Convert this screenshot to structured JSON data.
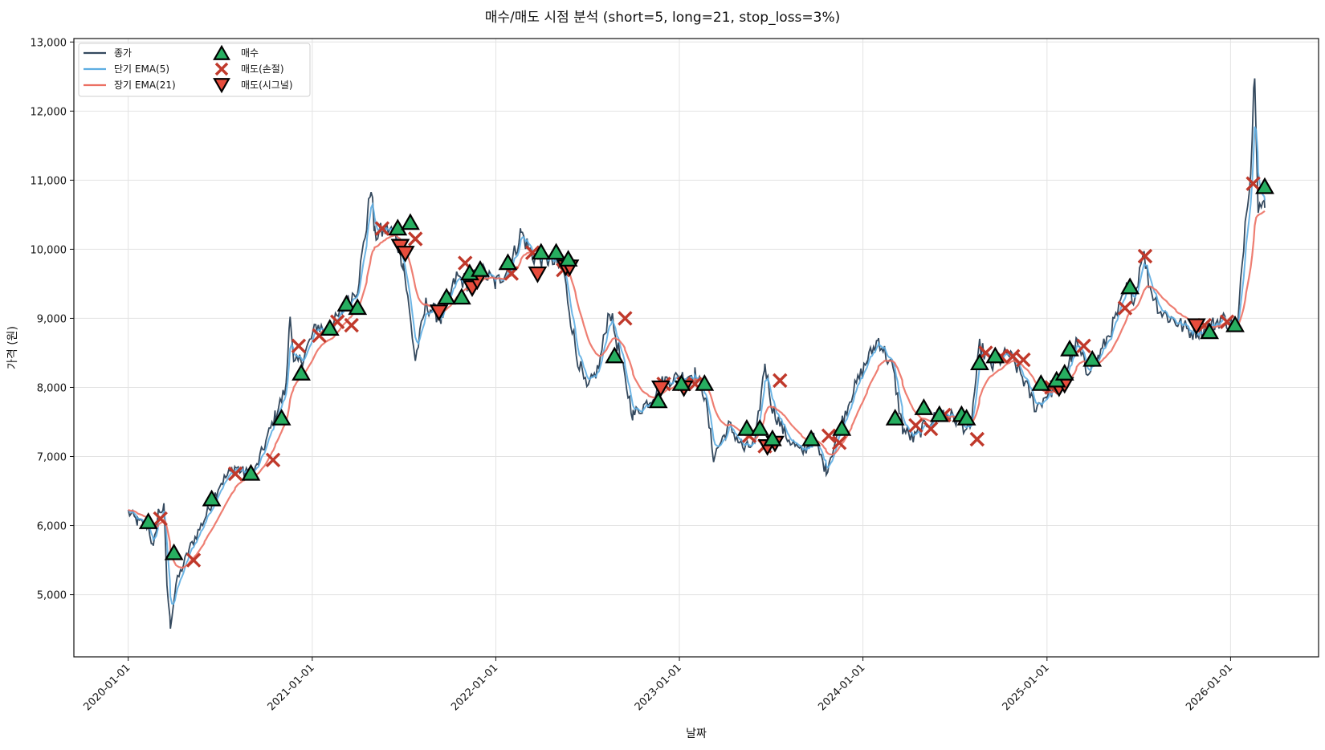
{
  "chart_data": {
    "type": "line",
    "title": "매수/매도 시점 분석 (short=5, long=21, stop_loss=3%)",
    "xlabel": "날짜",
    "ylabel": "가격 (원)",
    "ylim": [
      4100,
      13050
    ],
    "xlim": [
      "2019-09-15",
      "2026-06-25"
    ],
    "y_ticks": [
      5000,
      6000,
      7000,
      8000,
      9000,
      10000,
      11000,
      12000,
      13000
    ],
    "y_tick_labels": [
      "5,000",
      "6,000",
      "7,000",
      "8,000",
      "9,000",
      "10,000",
      "11,000",
      "12,000",
      "13,000"
    ],
    "x_ticks": [
      "2020-01-01",
      "2021-01-01",
      "2022-01-01",
      "2023-01-01",
      "2024-01-01",
      "2025-01-01",
      "2026-01-01"
    ],
    "grid": true,
    "legend": {
      "position": "top-left",
      "entries": [
        {
          "label": "종가",
          "symbol": "line",
          "color": "#34495e"
        },
        {
          "label": "단기 EMA(5)",
          "symbol": "line",
          "color": "#5dade2"
        },
        {
          "label": "장기 EMA(21)",
          "symbol": "line",
          "color": "#ec7063"
        },
        {
          "label": "매수",
          "symbol": "triangle-up",
          "color": "#27ae60"
        },
        {
          "label": "매도(손절)",
          "symbol": "x",
          "color": "#c0392b"
        },
        {
          "label": "매도(시그널)",
          "symbol": "triangle-down",
          "color": "#e74c3c"
        }
      ]
    },
    "colors": {
      "close": "#34495e",
      "ema_short": "#5dade2",
      "ema_long": "#ec7063",
      "buy": "#27ae60",
      "sell_stop": "#c0392b",
      "sell_signal": "#e74c3c"
    },
    "series_keypoints": [
      [
        "2020-01-01",
        6200
      ],
      [
        "2020-01-20",
        6050
      ],
      [
        "2020-02-10",
        6000
      ],
      [
        "2020-02-20",
        5650
      ],
      [
        "2020-03-01",
        6200
      ],
      [
        "2020-03-12",
        6250
      ],
      [
        "2020-03-18",
        5150
      ],
      [
        "2020-03-25",
        4550
      ],
      [
        "2020-04-05",
        5150
      ],
      [
        "2020-05-01",
        5650
      ],
      [
        "2020-06-01",
        6100
      ],
      [
        "2020-07-01",
        6600
      ],
      [
        "2020-08-01",
        6850
      ],
      [
        "2020-08-20",
        6750
      ],
      [
        "2020-09-10",
        6800
      ],
      [
        "2020-09-25",
        7100
      ],
      [
        "2020-10-20",
        7600
      ],
      [
        "2020-11-10",
        8000
      ],
      [
        "2020-11-18",
        9150
      ],
      [
        "2020-11-25",
        8300
      ],
      [
        "2020-12-15",
        8450
      ],
      [
        "2021-01-10",
        8900
      ],
      [
        "2021-02-01",
        8800
      ],
      [
        "2021-03-01",
        9100
      ],
      [
        "2021-04-01",
        9450
      ],
      [
        "2021-04-20",
        10400
      ],
      [
        "2021-04-28",
        10950
      ],
      [
        "2021-05-05",
        10200
      ],
      [
        "2021-06-01",
        10300
      ],
      [
        "2021-06-15",
        10200
      ],
      [
        "2021-07-01",
        9800
      ],
      [
        "2021-07-25",
        8400
      ],
      [
        "2021-08-15",
        9200
      ],
      [
        "2021-09-15",
        9000
      ],
      [
        "2021-10-15",
        9600
      ],
      [
        "2021-11-10",
        9500
      ],
      [
        "2021-12-01",
        9700
      ],
      [
        "2022-01-01",
        9500
      ],
      [
        "2022-02-01",
        9800
      ],
      [
        "2022-02-20",
        10250
      ],
      [
        "2022-03-15",
        9900
      ],
      [
        "2022-04-15",
        9850
      ],
      [
        "2022-05-15",
        9700
      ],
      [
        "2022-06-10",
        8500
      ],
      [
        "2022-07-01",
        7950
      ],
      [
        "2022-07-25",
        8300
      ],
      [
        "2022-08-15",
        9150
      ],
      [
        "2022-09-15",
        8100
      ],
      [
        "2022-10-01",
        7600
      ],
      [
        "2022-11-01",
        7800
      ],
      [
        "2022-12-01",
        8100
      ],
      [
        "2023-01-01",
        8150
      ],
      [
        "2023-02-01",
        8200
      ],
      [
        "2023-02-20",
        7900
      ],
      [
        "2023-03-10",
        7000
      ],
      [
        "2023-04-10",
        7450
      ],
      [
        "2023-05-10",
        7100
      ],
      [
        "2023-06-01",
        7200
      ],
      [
        "2023-06-20",
        8350
      ],
      [
        "2023-07-05",
        7700
      ],
      [
        "2023-08-01",
        7300
      ],
      [
        "2023-09-01",
        7050
      ],
      [
        "2023-09-25",
        7250
      ],
      [
        "2023-10-20",
        6800
      ],
      [
        "2023-11-15",
        7400
      ],
      [
        "2023-12-10",
        7900
      ],
      [
        "2024-01-10",
        8400
      ],
      [
        "2024-02-01",
        8700
      ],
      [
        "2024-03-01",
        8250
      ],
      [
        "2024-03-20",
        7400
      ],
      [
        "2024-04-10",
        7250
      ],
      [
        "2024-05-10",
        7500
      ],
      [
        "2024-06-10",
        7650
      ],
      [
        "2024-07-10",
        7500
      ],
      [
        "2024-08-01",
        7350
      ],
      [
        "2024-08-20",
        8600
      ],
      [
        "2024-09-15",
        8300
      ],
      [
        "2024-10-15",
        8500
      ],
      [
        "2024-11-10",
        8200
      ],
      [
        "2024-12-10",
        7700
      ],
      [
        "2025-01-01",
        7900
      ],
      [
        "2025-02-01",
        8100
      ],
      [
        "2025-03-01",
        8650
      ],
      [
        "2025-03-20",
        8250
      ],
      [
        "2025-04-15",
        8450
      ],
      [
        "2025-05-15",
        8950
      ],
      [
        "2025-06-10",
        9450
      ],
      [
        "2025-06-25",
        9300
      ],
      [
        "2025-07-10",
        10000
      ],
      [
        "2025-07-25",
        9450
      ],
      [
        "2025-08-15",
        9100
      ],
      [
        "2025-09-15",
        8950
      ],
      [
        "2025-10-15",
        8800
      ],
      [
        "2025-11-15",
        8850
      ],
      [
        "2025-12-15",
        9000
      ],
      [
        "2026-01-15",
        8850
      ],
      [
        "2026-02-01",
        10600
      ],
      [
        "2026-02-10",
        11100
      ],
      [
        "2026-02-18",
        12650
      ],
      [
        "2026-02-25",
        10650
      ],
      [
        "2026-03-10",
        10600
      ]
    ],
    "markers": {
      "buy": [
        [
          "2020-02-10",
          6050
        ],
        [
          "2020-04-01",
          5600
        ],
        [
          "2020-06-15",
          6380
        ],
        [
          "2020-09-01",
          6750
        ],
        [
          "2020-11-01",
          7550
        ],
        [
          "2020-12-10",
          8200
        ],
        [
          "2021-02-05",
          8850
        ],
        [
          "2021-03-10",
          9200
        ],
        [
          "2021-04-01",
          9150
        ],
        [
          "2021-06-20",
          10300
        ],
        [
          "2021-07-15",
          10380
        ],
        [
          "2021-09-25",
          9300
        ],
        [
          "2021-10-25",
          9300
        ],
        [
          "2021-11-10",
          9650
        ],
        [
          "2021-12-01",
          9700
        ],
        [
          "2022-01-25",
          9800
        ],
        [
          "2022-04-01",
          9950
        ],
        [
          "2022-05-01",
          9950
        ],
        [
          "2022-05-25",
          9850
        ],
        [
          "2022-08-25",
          8450
        ],
        [
          "2022-11-20",
          7800
        ],
        [
          "2023-01-05",
          8050
        ],
        [
          "2023-02-20",
          8050
        ],
        [
          "2023-05-15",
          7400
        ],
        [
          "2023-06-10",
          7400
        ],
        [
          "2023-07-05",
          7250
        ],
        [
          "2023-09-20",
          7250
        ],
        [
          "2023-11-20",
          7400
        ],
        [
          "2024-03-05",
          7550
        ],
        [
          "2024-05-01",
          7700
        ],
        [
          "2024-06-01",
          7600
        ],
        [
          "2024-07-15",
          7600
        ],
        [
          "2024-07-25",
          7550
        ],
        [
          "2024-08-20",
          8350
        ],
        [
          "2024-09-20",
          8450
        ],
        [
          "2024-12-20",
          8050
        ],
        [
          "2025-01-20",
          8100
        ],
        [
          "2025-02-05",
          8200
        ],
        [
          "2025-02-15",
          8550
        ],
        [
          "2025-04-01",
          8400
        ],
        [
          "2025-06-15",
          9450
        ],
        [
          "2025-11-20",
          8800
        ],
        [
          "2026-01-10",
          8900
        ],
        [
          "2026-03-10",
          10900
        ]
      ],
      "sell_stop": [
        [
          "2020-03-05",
          6100
        ],
        [
          "2020-05-10",
          5500
        ],
        [
          "2020-08-01",
          6750
        ],
        [
          "2020-10-15",
          6950
        ],
        [
          "2020-12-05",
          8600
        ],
        [
          "2021-01-15",
          8750
        ],
        [
          "2021-02-20",
          8950
        ],
        [
          "2021-03-20",
          8900
        ],
        [
          "2021-05-20",
          10300
        ],
        [
          "2021-07-25",
          10150
        ],
        [
          "2021-11-01",
          9800
        ],
        [
          "2022-02-01",
          9650
        ],
        [
          "2022-03-15",
          9950
        ],
        [
          "2022-05-15",
          9700
        ],
        [
          "2022-09-15",
          9000
        ],
        [
          "2022-12-01",
          8050
        ],
        [
          "2023-01-10",
          8050
        ],
        [
          "2023-02-01",
          8050
        ],
        [
          "2023-05-20",
          7300
        ],
        [
          "2023-06-20",
          7150
        ],
        [
          "2023-07-20",
          8100
        ],
        [
          "2023-10-25",
          7300
        ],
        [
          "2023-11-15",
          7200
        ],
        [
          "2024-04-15",
          7450
        ],
        [
          "2024-05-15",
          7400
        ],
        [
          "2024-06-10",
          7600
        ],
        [
          "2024-08-15",
          7250
        ],
        [
          "2024-09-01",
          8500
        ],
        [
          "2024-10-01",
          8450
        ],
        [
          "2024-10-25",
          8450
        ],
        [
          "2024-11-15",
          8400
        ],
        [
          "2025-01-10",
          8000
        ],
        [
          "2025-03-15",
          8600
        ],
        [
          "2025-06-05",
          9150
        ],
        [
          "2025-07-15",
          9900
        ],
        [
          "2025-11-10",
          8900
        ],
        [
          "2025-12-25",
          8950
        ],
        [
          "2026-02-15",
          10950
        ]
      ],
      "sell_signal": [
        [
          "2021-06-25",
          10050
        ],
        [
          "2021-07-05",
          9950
        ],
        [
          "2021-09-10",
          9100
        ],
        [
          "2021-11-15",
          9450
        ],
        [
          "2021-11-25",
          9550
        ],
        [
          "2022-03-25",
          9650
        ],
        [
          "2022-05-20",
          9750
        ],
        [
          "2022-05-28",
          9750
        ],
        [
          "2022-11-25",
          8000
        ],
        [
          "2023-01-10",
          8000
        ],
        [
          "2023-06-25",
          7150
        ],
        [
          "2023-07-10",
          7200
        ],
        [
          "2025-01-25",
          8000
        ],
        [
          "2025-02-05",
          8050
        ],
        [
          "2025-10-25",
          8900
        ]
      ]
    }
  }
}
